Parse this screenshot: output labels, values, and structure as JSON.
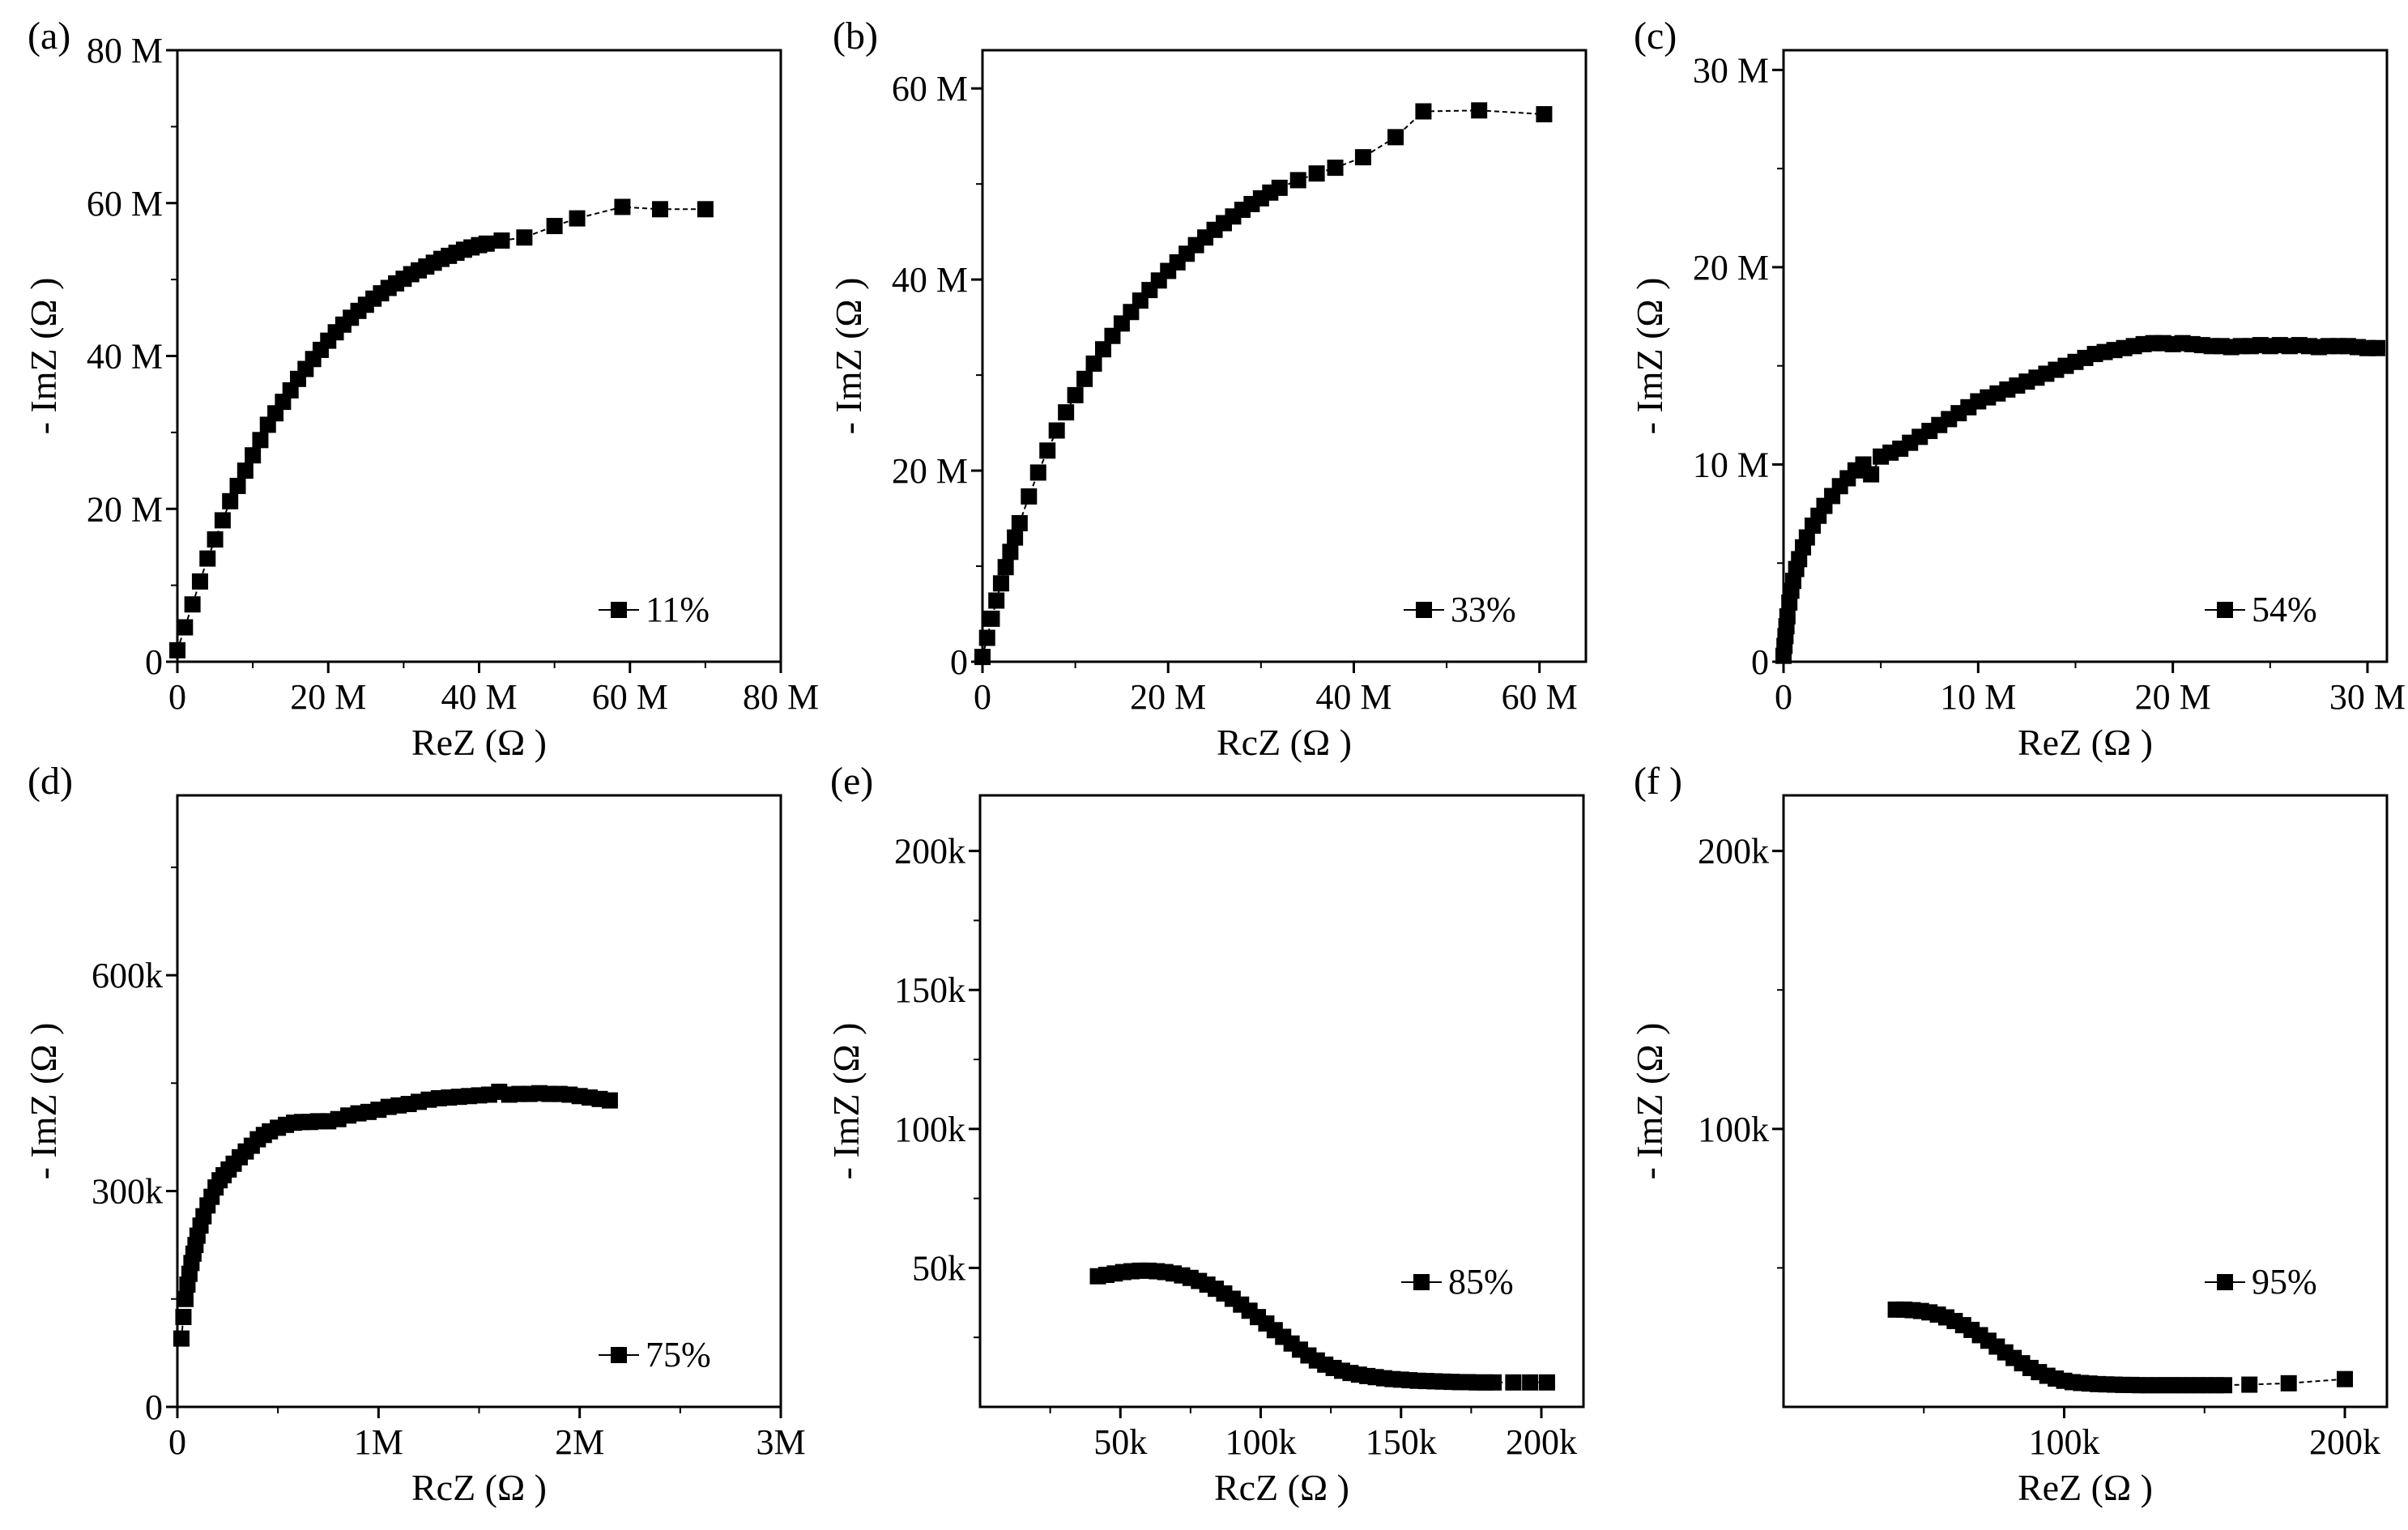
{
  "figure_title": "",
  "chart_data": [
    {
      "type": "scatter",
      "panel_label": "(a)",
      "xlabel": "ReZ (Ω )",
      "ylabel": "- ImZ (Ω )",
      "xlim": [
        0,
        80000000
      ],
      "ylim": [
        0,
        80000000
      ],
      "x_ticks": [
        0,
        20000000,
        40000000,
        60000000,
        80000000
      ],
      "x_tick_labels": [
        "0",
        "20 M",
        "40 M",
        "60 M",
        "80 M"
      ],
      "y_ticks": [
        0,
        20000000,
        40000000,
        60000000,
        80000000
      ],
      "y_tick_labels": [
        "0",
        "20 M",
        "40 M",
        "60 M",
        "80 M"
      ],
      "legend": "11%",
      "legend_position": "bottom-right",
      "series": [
        {
          "name": "11%",
          "x": [
            0,
            1000000,
            2000000,
            3000000,
            4000000,
            5000000,
            6000000,
            7000000,
            8000000,
            9000000,
            10000000,
            11000000,
            12000000,
            13000000,
            14000000,
            15000000,
            16000000,
            17000000,
            18000000,
            19000000,
            20000000,
            21000000,
            22000000,
            23000000,
            24000000,
            25000000,
            26000000,
            27000000,
            28000000,
            29000000,
            30000000,
            31000000,
            32000000,
            33000000,
            34000000,
            35000000,
            36000000,
            37000000,
            38000000,
            39000000,
            40000000,
            41000000,
            43000000,
            46000000,
            50000000,
            53000000,
            59000000,
            64000000,
            70000000
          ],
          "y": [
            1500000,
            4500000,
            7500000,
            10500000,
            13500000,
            16000000,
            18500000,
            21000000,
            23000000,
            25000000,
            27000000,
            29000000,
            31000000,
            32500000,
            34000000,
            35500000,
            37000000,
            38300000,
            39600000,
            40800000,
            42000000,
            43100000,
            44100000,
            45000000,
            45900000,
            46700000,
            47500000,
            48200000,
            48900000,
            49500000,
            50100000,
            50700000,
            51200000,
            51700000,
            52200000,
            52700000,
            53100000,
            53500000,
            53900000,
            54200000,
            54500000,
            54700000,
            55100000,
            55500000,
            57000000,
            58000000,
            59500000,
            59200000,
            59200000
          ]
        }
      ]
    },
    {
      "type": "scatter",
      "panel_label": "(b)",
      "xlabel": "RcZ (Ω )",
      "ylabel": "- ImZ (Ω )",
      "xlim": [
        0,
        65000000
      ],
      "ylim": [
        0,
        64000000
      ],
      "x_ticks": [
        0,
        20000000,
        40000000,
        60000000
      ],
      "x_tick_labels": [
        "0",
        "20 M",
        "40 M",
        "60 M"
      ],
      "y_ticks": [
        0,
        20000000,
        40000000,
        60000000
      ],
      "y_tick_labels": [
        "0",
        "20 M",
        "40 M",
        "60 M"
      ],
      "legend": "33%",
      "legend_position": "bottom-right",
      "series": [
        {
          "name": "33%",
          "x": [
            0,
            500000,
            1000000,
            1500000,
            2000000,
            2500000,
            3000000,
            3500000,
            4000000,
            5000000,
            6000000,
            7000000,
            8000000,
            9000000,
            10000000,
            11000000,
            12000000,
            13000000,
            14000000,
            15000000,
            16000000,
            17000000,
            18000000,
            19000000,
            20000000,
            21000000,
            22000000,
            23000000,
            24000000,
            25000000,
            26000000,
            27000000,
            28000000,
            29000000,
            30000000,
            31000000,
            32000000,
            34000000,
            36000000,
            38000000,
            41000000,
            44500000,
            47500000,
            53500000,
            60500000
          ],
          "y": [
            500000,
            2500000,
            4500000,
            6400000,
            8200000,
            9900000,
            11500000,
            13000000,
            14500000,
            17300000,
            19800000,
            22100000,
            24200000,
            26100000,
            27900000,
            29600000,
            31200000,
            32700000,
            34100000,
            35400000,
            36600000,
            37800000,
            38900000,
            39900000,
            40900000,
            41800000,
            42700000,
            43600000,
            44400000,
            45200000,
            45900000,
            46600000,
            47300000,
            47900000,
            48500000,
            49100000,
            49600000,
            50400000,
            51100000,
            51700000,
            52800000,
            54900000,
            57600000,
            57700000,
            57300000
          ]
        }
      ]
    },
    {
      "type": "scatter",
      "panel_label": "(c)",
      "xlabel": "ReZ (Ω )",
      "ylabel": "- ImZ (Ω )",
      "xlim": [
        0,
        31000000
      ],
      "ylim": [
        0,
        31000000
      ],
      "x_ticks": [
        0,
        10000000,
        20000000,
        30000000
      ],
      "x_tick_labels": [
        "0",
        "10 M",
        "20 M",
        "30 M"
      ],
      "y_ticks": [
        0,
        10000000,
        20000000,
        30000000
      ],
      "y_tick_labels": [
        "0",
        "10 M",
        "20 M",
        "30 M"
      ],
      "legend": "54%",
      "legend_position": "bottom-right",
      "series": [
        {
          "name": "54%",
          "x": [
            0,
            50000,
            100000,
            150000,
            200000,
            300000,
            400000,
            500000,
            650000,
            800000,
            1000000,
            1200000,
            1500000,
            1800000,
            2100000,
            2500000,
            2900000,
            3300000,
            3700000,
            4100000,
            4500000,
            5000000,
            5500000,
            6000000,
            6500000,
            7000000,
            7500000,
            8000000,
            8500000,
            9000000,
            9500000,
            10000000,
            10500000,
            11000000,
            11500000,
            12000000,
            12500000,
            13000000,
            13500000,
            14000000,
            14500000,
            15000000,
            15500000,
            16000000,
            16500000,
            17000000,
            17500000,
            18000000,
            18500000,
            19000000,
            19500000,
            20000000,
            20500000,
            21000000,
            21500000,
            22000000,
            22500000,
            23000000,
            23500000,
            24000000,
            24500000,
            25000000,
            25500000,
            26000000,
            26500000,
            27000000,
            27500000,
            28000000,
            28500000,
            29000000,
            29500000,
            30000000,
            30500000
          ],
          "y": [
            300000,
            800000,
            1300000,
            1800000,
            2300000,
            3000000,
            3600000,
            4100000,
            4700000,
            5200000,
            5800000,
            6300000,
            6900000,
            7400000,
            7900000,
            8400000,
            8900000,
            9300000,
            9700000,
            10000000,
            9500000,
            10400000,
            10600000,
            10800000,
            11100000,
            11400000,
            11700000,
            12000000,
            12300000,
            12600000,
            12900000,
            13200000,
            13400000,
            13600000,
            13800000,
            14000000,
            14200000,
            14400000,
            14600000,
            14800000,
            15000000,
            15200000,
            15400000,
            15600000,
            15700000,
            15800000,
            15900000,
            16000000,
            16100000,
            16150000,
            16150000,
            16100000,
            16150000,
            16100000,
            16050000,
            16000000,
            16000000,
            15950000,
            16000000,
            16000000,
            16050000,
            16000000,
            16050000,
            16000000,
            16050000,
            16000000,
            15950000,
            16000000,
            16000000,
            16000000,
            15950000,
            15900000,
            15900000
          ]
        }
      ]
    },
    {
      "type": "scatter",
      "panel_label": "(d)",
      "xlabel": "RcZ (Ω )",
      "ylabel": "- ImZ (Ω )",
      "xlim": [
        0,
        3000000
      ],
      "ylim": [
        0,
        850000
      ],
      "x_ticks": [
        0,
        1000000,
        2000000,
        3000000
      ],
      "x_tick_labels": [
        "0",
        "1M",
        "2M",
        "3M"
      ],
      "y_ticks": [
        0,
        300000,
        600000
      ],
      "y_tick_labels": [
        "0",
        "300k",
        "600k"
      ],
      "legend": "75%",
      "legend_position": "bottom-right",
      "series": [
        {
          "name": "75%",
          "x": [
            20000,
            30000,
            40000,
            50000,
            60000,
            70000,
            80000,
            90000,
            100000,
            115000,
            130000,
            150000,
            170000,
            190000,
            210000,
            230000,
            255000,
            280000,
            310000,
            340000,
            370000,
            400000,
            430000,
            460000,
            500000,
            540000,
            580000,
            620000,
            660000,
            700000,
            750000,
            800000,
            850000,
            900000,
            950000,
            1000000,
            1050000,
            1100000,
            1150000,
            1200000,
            1250000,
            1300000,
            1350000,
            1400000,
            1450000,
            1500000,
            1550000,
            1600000,
            1650000,
            1700000,
            1750000,
            1800000,
            1850000,
            1900000,
            1950000,
            2000000,
            2050000,
            2100000,
            2150000
          ],
          "y": [
            95000,
            125000,
            150000,
            170000,
            185000,
            200000,
            213000,
            225000,
            238000,
            252000,
            265000,
            280000,
            292000,
            305000,
            315000,
            322000,
            330000,
            338000,
            347000,
            355000,
            363000,
            372000,
            378000,
            383000,
            388000,
            392000,
            395000,
            396000,
            396000,
            397000,
            397000,
            400000,
            405000,
            408000,
            410000,
            413000,
            417000,
            419000,
            421000,
            424000,
            427000,
            429000,
            430000,
            431000,
            432000,
            433000,
            434000,
            438000,
            434000,
            435000,
            435000,
            436000,
            435000,
            435000,
            434000,
            432000,
            430000,
            428000,
            426000
          ]
        }
      ]
    },
    {
      "type": "scatter",
      "panel_label": "(e)",
      "xlabel": "RcZ (Ω )",
      "ylabel": "- ImZ (Ω )",
      "xlim": [
        0,
        215000
      ],
      "ylim": [
        0,
        220000
      ],
      "x_ticks": [
        50000,
        100000,
        150000,
        200000
      ],
      "x_tick_labels": [
        "50k",
        "100k",
        "150k",
        "200k"
      ],
      "y_ticks": [
        50000,
        100000,
        150000,
        200000
      ],
      "y_tick_labels": [
        "50k",
        "100k",
        "150k",
        "200k"
      ],
      "legend": "85%",
      "legend_position": "right",
      "series": [
        {
          "name": "85%",
          "x": [
            42000,
            45000,
            48000,
            51000,
            54000,
            57000,
            60000,
            63000,
            66000,
            69000,
            72000,
            75000,
            78000,
            81000,
            84000,
            87000,
            90000,
            93000,
            96000,
            99000,
            102000,
            105000,
            108000,
            111000,
            114000,
            117000,
            120000,
            123000,
            126000,
            129000,
            132000,
            135000,
            138000,
            141000,
            144000,
            147000,
            150000,
            153000,
            156000,
            159000,
            162000,
            165000,
            168000,
            171000,
            174000,
            177000,
            180000,
            183000,
            190000,
            196000,
            202000
          ],
          "y": [
            47000,
            47500,
            48000,
            48500,
            48800,
            49000,
            49000,
            48800,
            48500,
            48000,
            47300,
            46400,
            45300,
            44000,
            42500,
            40800,
            38900,
            36800,
            34600,
            32300,
            30000,
            27600,
            25200,
            22800,
            20600,
            18500,
            16700,
            15200,
            14000,
            13000,
            12200,
            11600,
            11100,
            10700,
            10300,
            10000,
            9800,
            9600,
            9400,
            9300,
            9200,
            9100,
            9000,
            8900,
            8900,
            8800,
            8800,
            8800,
            8800,
            8800,
            8800
          ]
        }
      ]
    },
    {
      "type": "scatter",
      "panel_label": "(f )",
      "xlabel": "ReZ (Ω )",
      "ylabel": "- ImZ (Ω )",
      "xlim": [
        0,
        215000
      ],
      "ylim": [
        0,
        220000
      ],
      "x_ticks": [
        100000,
        200000
      ],
      "x_tick_labels": [
        "100k",
        "200k"
      ],
      "y_ticks": [
        100000,
        200000
      ],
      "y_tick_labels": [
        "100k",
        "200k"
      ],
      "legend": "95%",
      "legend_position": "right",
      "series": [
        {
          "name": "95%",
          "x": [
            40000,
            43000,
            46000,
            49000,
            52000,
            55000,
            58000,
            61000,
            64000,
            67000,
            70000,
            73000,
            76000,
            79000,
            82000,
            85000,
            88000,
            91000,
            94000,
            97000,
            100000,
            103000,
            106000,
            109000,
            112000,
            115000,
            118000,
            121000,
            124000,
            127000,
            130000,
            133000,
            136000,
            139000,
            142000,
            145000,
            148000,
            151000,
            154000,
            157000,
            166000,
            180000,
            200000
          ],
          "y": [
            35000,
            35000,
            34800,
            34500,
            34000,
            33200,
            32200,
            30900,
            29400,
            27700,
            25800,
            23800,
            21700,
            19600,
            17600,
            15700,
            14000,
            12500,
            11200,
            10200,
            9400,
            8900,
            8600,
            8400,
            8200,
            8100,
            8000,
            7900,
            7900,
            7800,
            7800,
            7800,
            7800,
            7800,
            7800,
            7800,
            7800,
            7800,
            7800,
            7800,
            8000,
            8500,
            10000
          ]
        }
      ]
    }
  ]
}
